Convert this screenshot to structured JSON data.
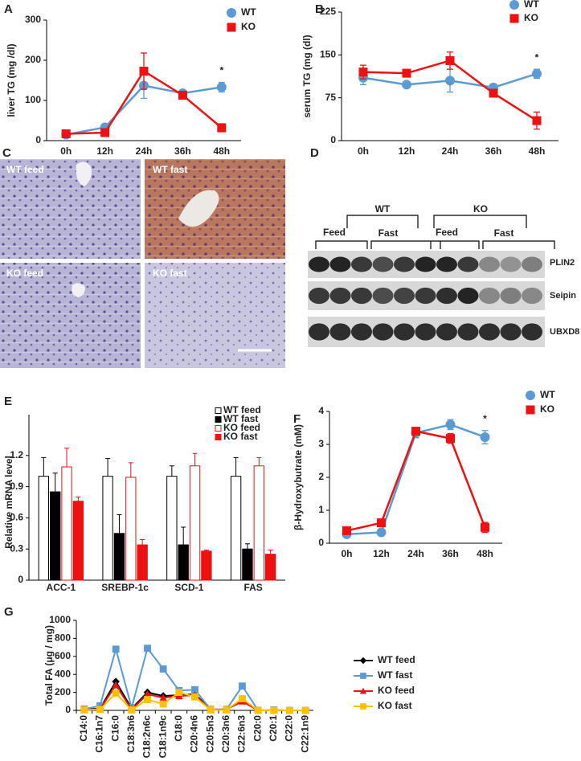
{
  "chart_data": [
    {
      "type": "line",
      "panel": "A",
      "y_label": "liver TG (mg /dl)",
      "categories": [
        "0h",
        "12h",
        "24h",
        "36h",
        "48h"
      ],
      "ylim": [
        0,
        300
      ],
      "yticks": [
        0,
        100,
        200,
        300
      ],
      "annotation": "*",
      "series": [
        {
          "name": "WT",
          "color": "#5b9bd5",
          "marker": "circle",
          "values": [
            15,
            33,
            137,
            118,
            133
          ],
          "errors": [
            3,
            3,
            32,
            5,
            12
          ]
        },
        {
          "name": "KO",
          "color": "#ee1111",
          "marker": "square",
          "values": [
            17,
            20,
            173,
            113,
            32
          ],
          "errors": [
            3,
            3,
            45,
            5,
            10
          ]
        }
      ]
    },
    {
      "type": "line",
      "panel": "B",
      "y_label": "serum  TG (mg (dl)",
      "categories": [
        "0h",
        "12h",
        "24h",
        "36h",
        "48h"
      ],
      "ylim": [
        0,
        225
      ],
      "yticks": [
        0,
        75,
        150,
        225
      ],
      "annotation": "*",
      "series": [
        {
          "name": "WT",
          "color": "#5b9bd5",
          "marker": "circle",
          "values": [
            110,
            98,
            105,
            93,
            117
          ],
          "errors": [
            12,
            3,
            20,
            6,
            8
          ]
        },
        {
          "name": "KO",
          "color": "#ee1111",
          "marker": "square",
          "values": [
            120,
            118,
            140,
            83,
            35
          ],
          "errors": [
            12,
            4,
            15,
            5,
            15
          ]
        }
      ]
    },
    {
      "type": "bar",
      "panel": "E",
      "y_label": "Relative mRNA level",
      "categories": [
        "ACC-1",
        "SREBP-1c",
        "SCD-1",
        "FAS"
      ],
      "ylim": [
        0,
        1.5
      ],
      "yticks": [
        0,
        0.3,
        0.6,
        0.9,
        1.2
      ],
      "series": [
        {
          "name": "WT feed",
          "color": "#000000",
          "fill": "#ffffff",
          "values": [
            1,
            1,
            1,
            1
          ],
          "errors": [
            0.18,
            0.17,
            0.1,
            0.18
          ]
        },
        {
          "name": "WT fast",
          "color": "#000000",
          "fill": "#000000",
          "values": [
            0.85,
            0.45,
            0.34,
            0.3
          ],
          "errors": [
            0.18,
            0.18,
            0.17,
            0.05
          ]
        },
        {
          "name": "KO feed",
          "color": "#ee1111",
          "fill": "#ffffff",
          "values": [
            1.09,
            0.99,
            1.1,
            1.1
          ],
          "errors": [
            0.18,
            0.14,
            0.12,
            0.08
          ]
        },
        {
          "name": "KO fast",
          "color": "#ee1111",
          "fill": "#ee1111",
          "values": [
            0.76,
            0.34,
            0.28,
            0.25
          ],
          "errors": [
            0.04,
            0.05,
            0.01,
            0.04
          ]
        }
      ]
    },
    {
      "type": "line",
      "panel": "F",
      "y_label": "β-Hydroxybutrate (mM)",
      "categories": [
        "0h",
        "12h",
        "24h",
        "36h",
        "48h"
      ],
      "ylim": [
        0,
        4
      ],
      "yticks": [
        0,
        1,
        2,
        3,
        4
      ],
      "annotation": "*",
      "series": [
        {
          "name": "WT",
          "color": "#5b9bd5",
          "marker": "circle",
          "values": [
            0.27,
            0.33,
            3.35,
            3.6,
            3.22
          ],
          "errors": [
            0.05,
            0.05,
            0.15,
            0.15,
            0.2
          ]
        },
        {
          "name": "KO",
          "color": "#ee1111",
          "marker": "square",
          "values": [
            0.38,
            0.62,
            3.4,
            3.18,
            0.48
          ],
          "errors": [
            0.05,
            0.05,
            0.1,
            0.15,
            0.15
          ]
        }
      ]
    },
    {
      "type": "line",
      "panel": "G",
      "y_label": "Total FA (μg / mg)",
      "categories": [
        "C14:0",
        "C16:1n7",
        "C16:0",
        "C18:3n6",
        "C18:2n6c",
        "C18:1n9c",
        "C18:0",
        "C20:4n6",
        "C20:5n3",
        "C20:3n6",
        "C22:6n3",
        "C20:0",
        "C20:1",
        "C22:0",
        "C22:1n9"
      ],
      "ylim": [
        0,
        1000
      ],
      "yticks": [
        0,
        200,
        400,
        600,
        800,
        1000
      ],
      "series": [
        {
          "name": "WT feed",
          "color": "#000000",
          "marker": "diamond",
          "values": [
            10,
            20,
            320,
            20,
            200,
            160,
            170,
            180,
            10,
            10,
            110,
            0,
            0,
            0,
            0
          ]
        },
        {
          "name": "WT fast",
          "color": "#5b9bd5",
          "marker": "square",
          "values": [
            15,
            50,
            680,
            30,
            690,
            460,
            220,
            230,
            10,
            10,
            270,
            0,
            5,
            0,
            0
          ]
        },
        {
          "name": "KO feed",
          "color": "#ee1111",
          "marker": "triangle",
          "values": [
            5,
            15,
            280,
            10,
            180,
            140,
            160,
            170,
            5,
            10,
            100,
            0,
            0,
            0,
            0
          ]
        },
        {
          "name": "KO fast",
          "color": "#ffc000",
          "marker": "square",
          "values": [
            5,
            10,
            190,
            5,
            120,
            70,
            200,
            150,
            5,
            5,
            130,
            0,
            0,
            0,
            0
          ]
        }
      ]
    }
  ],
  "panels": {
    "C": {
      "label": "C",
      "images": [
        "WT feed",
        "WT fast",
        "KO feed",
        "KO fast"
      ]
    },
    "D": {
      "label": "D",
      "groups": [
        "WT",
        "KO"
      ],
      "conditions": [
        "Feed",
        "Fast",
        "Feed",
        "Fast"
      ],
      "bands": [
        "PLIN2",
        "Seipin",
        "UBXD8"
      ]
    }
  }
}
